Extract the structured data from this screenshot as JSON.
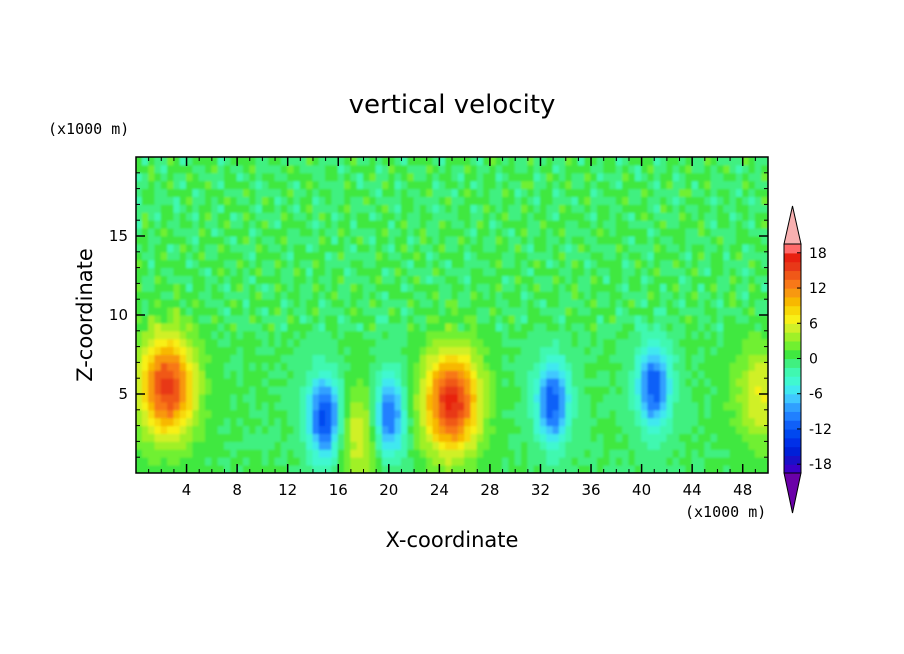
{
  "chart_data": {
    "type": "heatmap",
    "title": "vertical velocity",
    "xlabel": "X-coordinate",
    "ylabel": "Z-coordinate",
    "x_unit": "(x1000 m)",
    "y_unit": "(x1000 m)",
    "xlim": [
      0,
      50
    ],
    "ylim": [
      0,
      20
    ],
    "x_ticks": [
      4,
      8,
      12,
      16,
      20,
      24,
      28,
      32,
      36,
      40,
      44,
      48
    ],
    "y_ticks": [
      5,
      10,
      15
    ],
    "colorbar": {
      "levels": [
        -21,
        -19.5,
        -18,
        -16.5,
        -15,
        -13.5,
        -12,
        -10.5,
        -9,
        -7.5,
        -6,
        -4.5,
        -3,
        -1.5,
        0,
        1.5,
        3,
        4.5,
        6,
        7.5,
        9,
        10.5,
        12,
        13.5,
        15,
        16.5,
        18,
        19.5,
        21
      ],
      "tick_labels": [
        "18",
        "12",
        "6",
        "0",
        "-6",
        "-12",
        "-18"
      ],
      "tick_values": [
        18,
        12,
        6,
        0,
        -6,
        -12,
        -18
      ],
      "colors": [
        "#6a00a8",
        "#3a00c8",
        "#1a10c8",
        "#0020d8",
        "#0030e8",
        "#0048f0",
        "#1060f8",
        "#2080ff",
        "#30a0ff",
        "#40c8ff",
        "#40e8f0",
        "#40f8d0",
        "#40f8b0",
        "#40f080",
        "#40e840",
        "#70f030",
        "#a0f028",
        "#d0f028",
        "#f8f018",
        "#f8d808",
        "#f8b800",
        "#f89810",
        "#f87818",
        "#f05818",
        "#e83818",
        "#e82010",
        "#ff6a6a",
        "#f8b0b0"
      ],
      "extend": "both"
    },
    "features": [
      {
        "name": "updraft",
        "x": 2.5,
        "z": 5.5,
        "w": 16
      },
      {
        "name": "downdraft",
        "x": 15,
        "z": 3.5,
        "w": -14
      },
      {
        "name": "weak updraft",
        "x": 18,
        "z": 2.5,
        "w": 6
      },
      {
        "name": "downdraft",
        "x": 20,
        "z": 3.5,
        "w": -13
      },
      {
        "name": "updraft",
        "x": 25,
        "z": 4.5,
        "w": 17
      },
      {
        "name": "downdraft",
        "x": 33,
        "z": 4.5,
        "w": -12
      },
      {
        "name": "downdraft",
        "x": 41,
        "z": 5.5,
        "w": -12
      },
      {
        "name": "weak updraft",
        "x": 49.5,
        "z": 5,
        "w": 6
      }
    ]
  }
}
